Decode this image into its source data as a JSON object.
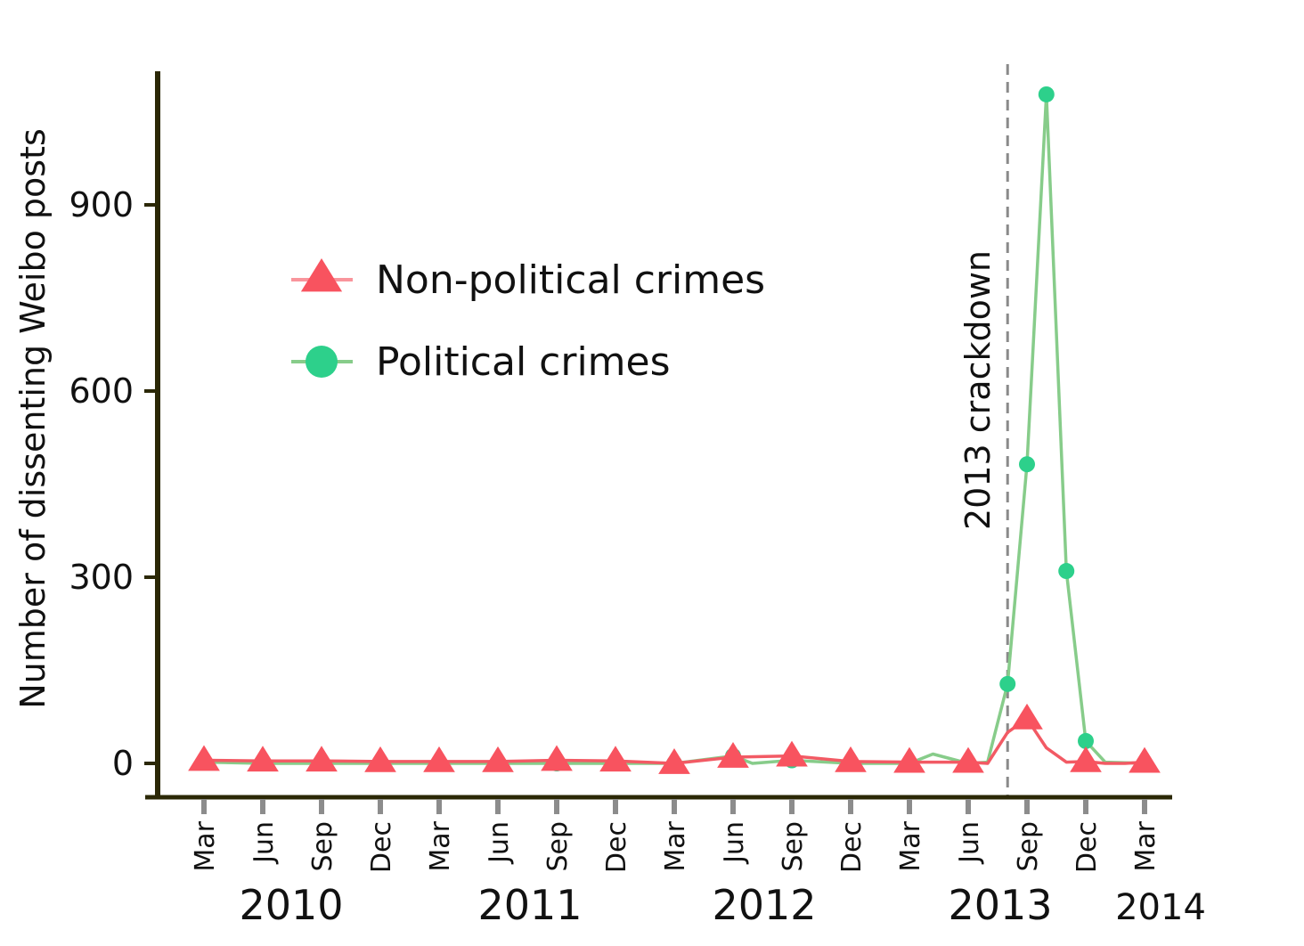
{
  "chart_data": {
    "type": "line",
    "title": "",
    "ylabel": "Number of dissenting Weibo posts",
    "xlabel": "",
    "ylim": [
      -55,
      1115
    ],
    "yticks": [
      0,
      300,
      600,
      900
    ],
    "x_months": [
      "Mar",
      "Jun",
      "Sep",
      "Dec",
      "Mar",
      "Jun",
      "Sep",
      "Dec",
      "Mar",
      "Jun",
      "Sep",
      "Dec",
      "Mar",
      "Jun",
      "Sep",
      "Dec",
      "Mar"
    ],
    "x_years": [
      "2010",
      "2011",
      "2012",
      "2013",
      "2014"
    ],
    "grid": false,
    "legend_position": "upper-left",
    "annotation": {
      "label": "2013 crackdown",
      "x_index": 13.67
    },
    "series": [
      {
        "name": "Non-political crimes",
        "marker": "triangle",
        "color": "#f8535f",
        "line_color": "#f25a64",
        "points": [
          {
            "x": 0,
            "y": 5,
            "m": true
          },
          {
            "x": 1,
            "y": 4,
            "m": true
          },
          {
            "x": 2,
            "y": 4,
            "m": true
          },
          {
            "x": 3,
            "y": 3,
            "m": true
          },
          {
            "x": 4,
            "y": 3,
            "m": true
          },
          {
            "x": 5,
            "y": 3,
            "m": true
          },
          {
            "x": 6,
            "y": 5,
            "m": true
          },
          {
            "x": 7,
            "y": 4,
            "m": true
          },
          {
            "x": 8,
            "y": 0,
            "m": true
          },
          {
            "x": 9,
            "y": 10,
            "m": true
          },
          {
            "x": 10,
            "y": 12,
            "m": true
          },
          {
            "x": 11,
            "y": 3,
            "m": true
          },
          {
            "x": 12,
            "y": 2,
            "m": true
          },
          {
            "x": 13,
            "y": 2,
            "m": true
          },
          {
            "x": 13.33,
            "y": 0,
            "m": false
          },
          {
            "x": 13.67,
            "y": 50,
            "m": false
          },
          {
            "x": 14,
            "y": 72,
            "m": true
          },
          {
            "x": 14.33,
            "y": 25,
            "m": false
          },
          {
            "x": 14.67,
            "y": 2,
            "m": false
          },
          {
            "x": 15,
            "y": 3,
            "m": true
          },
          {
            "x": 15.33,
            "y": 0,
            "m": false
          },
          {
            "x": 15.67,
            "y": 0,
            "m": false
          },
          {
            "x": 16,
            "y": 2,
            "m": true
          }
        ]
      },
      {
        "name": "Political crimes",
        "marker": "circle",
        "color": "#2dd08b",
        "line_color": "#87cc8a",
        "points": [
          {
            "x": 0,
            "y": 2,
            "m": true
          },
          {
            "x": 1,
            "y": 0,
            "m": true
          },
          {
            "x": 2,
            "y": 0,
            "m": true
          },
          {
            "x": 3,
            "y": 0,
            "m": true
          },
          {
            "x": 4,
            "y": 0,
            "m": true
          },
          {
            "x": 5,
            "y": 0,
            "m": true
          },
          {
            "x": 6,
            "y": 0,
            "m": true
          },
          {
            "x": 7,
            "y": 0,
            "m": true
          },
          {
            "x": 8,
            "y": 0,
            "m": true
          },
          {
            "x": 9,
            "y": 12,
            "m": true
          },
          {
            "x": 9.33,
            "y": 0,
            "m": false
          },
          {
            "x": 10,
            "y": 5,
            "m": true
          },
          {
            "x": 11,
            "y": 0,
            "m": true
          },
          {
            "x": 12,
            "y": 0,
            "m": true
          },
          {
            "x": 12.4,
            "y": 15,
            "m": false
          },
          {
            "x": 13,
            "y": 0,
            "m": true
          },
          {
            "x": 13.33,
            "y": 2,
            "m": false
          },
          {
            "x": 13.67,
            "y": 128,
            "m": true
          },
          {
            "x": 14,
            "y": 482,
            "m": true
          },
          {
            "x": 14.33,
            "y": 1078,
            "m": true
          },
          {
            "x": 14.67,
            "y": 310,
            "m": true
          },
          {
            "x": 15,
            "y": 36,
            "m": true
          },
          {
            "x": 15.33,
            "y": 2,
            "m": false
          },
          {
            "x": 16,
            "y": 0,
            "m": true
          }
        ]
      }
    ]
  }
}
